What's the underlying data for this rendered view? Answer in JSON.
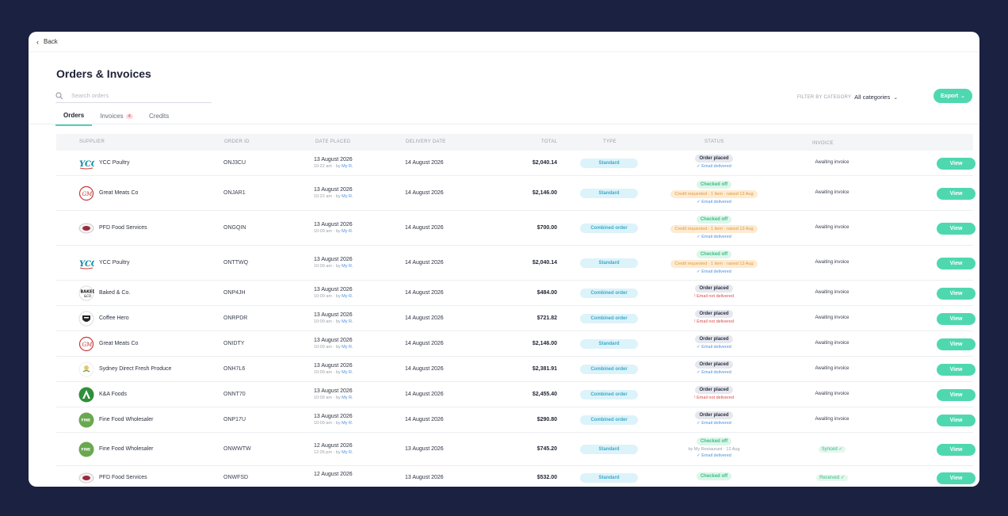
{
  "nav": {
    "back_label": "Back"
  },
  "page": {
    "title": "Orders & Invoices"
  },
  "search": {
    "placeholder": "Search orders"
  },
  "tabs": [
    {
      "label": "Orders",
      "active": true
    },
    {
      "label": "Invoices",
      "badge": "4"
    },
    {
      "label": "Credits"
    }
  ],
  "filter": {
    "label": "FILTER BY CATEGORY",
    "value": "All categories"
  },
  "export_label": "Export",
  "columns": [
    "SUPPLIER",
    "ORDER ID",
    "DATE PLACED",
    "DELIVERY DATE",
    "TOTAL",
    "TYPE",
    "STATUS",
    "INVOICE"
  ],
  "view_label": "View",
  "rows": [
    {
      "supplier": "YCC Poultry",
      "logo": "ycc-logo",
      "order_id": "ONJ3CU",
      "date": "13 August 2026",
      "date_sub": "10:22 am · by ",
      "by": "My R.",
      "delivery": "14 August 2026",
      "total": "$2,040.14",
      "type": "Standard",
      "status": {
        "pill": "Order placed",
        "pill_kind": "placed",
        "lines": [
          {
            "text": "✓ Email delivered",
            "kind": "ok"
          }
        ]
      },
      "invoice": "Awaiting invoice"
    },
    {
      "supplier": "Great Meats Co",
      "logo": "great-meats-logo",
      "order_id": "ONJAR1",
      "date": "13 August 2026",
      "date_sub": "10:22 am · by ",
      "by": "My R.",
      "delivery": "14 August 2026",
      "total": "$2,146.00",
      "type": "Standard",
      "status": {
        "pill": "Checked off",
        "pill_kind": "checked",
        "credit": "Credit requested · 1 item · raised 13 Aug",
        "lines": [
          {
            "text": "✓ Email delivered",
            "kind": "ok"
          }
        ]
      },
      "invoice": "Awaiting invoice"
    },
    {
      "supplier": "PFD Food Services",
      "logo": "pfd-logo",
      "order_id": "ONGQIN",
      "date": "13 August 2026",
      "date_sub": "10:09 am · by ",
      "by": "My R.",
      "delivery": "14 August 2026",
      "total": "$700.00",
      "type": "Combined order",
      "status": {
        "pill": "Checked off",
        "pill_kind": "checked",
        "credit": "Credit requested · 1 item · raised 13 Aug",
        "lines": [
          {
            "text": "✓ Email delivered",
            "kind": "ok"
          }
        ]
      },
      "invoice": "Awaiting invoice"
    },
    {
      "supplier": "YCC Poultry",
      "logo": "ycc-logo",
      "order_id": "ONTTWQ",
      "date": "13 August 2026",
      "date_sub": "10:09 am · by ",
      "by": "My R.",
      "delivery": "14 August 2026",
      "total": "$2,040.14",
      "type": "Standard",
      "status": {
        "pill": "Checked off",
        "pill_kind": "checked",
        "credit": "Credit requested · 1 item · raised 13 Aug",
        "lines": [
          {
            "text": "✓ Email delivered",
            "kind": "ok"
          }
        ]
      },
      "invoice": "Awaiting invoice"
    },
    {
      "supplier": "Baked & Co.",
      "logo": "baked-logo",
      "order_id": "ONP4JH",
      "date": "13 August 2026",
      "date_sub": "10:09 am · by ",
      "by": "My R.",
      "delivery": "14 August 2026",
      "total": "$484.00",
      "type": "Combined order",
      "status": {
        "pill": "Order placed",
        "pill_kind": "placed",
        "lines": [
          {
            "text": "! Email not delivered",
            "kind": "err"
          }
        ]
      },
      "invoice": "Awaiting invoice"
    },
    {
      "supplier": "Coffee Hero",
      "logo": "coffee-hero-logo",
      "order_id": "ONRPDR",
      "date": "13 August 2026",
      "date_sub": "10:09 am · by ",
      "by": "My R.",
      "delivery": "14 August 2026",
      "total": "$721.82",
      "type": "Combined order",
      "status": {
        "pill": "Order placed",
        "pill_kind": "placed",
        "lines": [
          {
            "text": "! Email not delivered",
            "kind": "err"
          }
        ]
      },
      "invoice": "Awaiting invoice"
    },
    {
      "supplier": "Great Meats Co",
      "logo": "great-meats-logo",
      "order_id": "ONIDTY",
      "date": "13 August 2026",
      "date_sub": "10:09 am · by ",
      "by": "My R.",
      "delivery": "14 August 2026",
      "total": "$2,146.00",
      "type": "Standard",
      "status": {
        "pill": "Order placed",
        "pill_kind": "placed",
        "lines": [
          {
            "text": "✓ Email delivered",
            "kind": "ok"
          }
        ]
      },
      "invoice": "Awaiting invoice"
    },
    {
      "supplier": "Sydney Direct Fresh Produce",
      "logo": "sydney-direct-logo",
      "order_id": "ONH7L6",
      "date": "13 August 2026",
      "date_sub": "10:09 am · by ",
      "by": "My R.",
      "delivery": "14 August 2026",
      "total": "$2,381.91",
      "type": "Combined order",
      "status": {
        "pill": "Order placed",
        "pill_kind": "placed",
        "lines": [
          {
            "text": "✓ Email delivered",
            "kind": "ok"
          }
        ]
      },
      "invoice": "Awaiting invoice"
    },
    {
      "supplier": "K&A Foods",
      "logo": "ka-foods-logo",
      "order_id": "ONNT70",
      "date": "13 August 2026",
      "date_sub": "10:09 am · by ",
      "by": "My R.",
      "delivery": "14 August 2026",
      "total": "$2,455.40",
      "type": "Combined order",
      "status": {
        "pill": "Order placed",
        "pill_kind": "placed",
        "lines": [
          {
            "text": "! Email not delivered",
            "kind": "err"
          }
        ]
      },
      "invoice": "Awaiting invoice"
    },
    {
      "supplier": "Fine Food Wholesaler",
      "logo": "fine-food-logo",
      "order_id": "ONP17U",
      "date": "13 August 2026",
      "date_sub": "10:09 am · by ",
      "by": "My R.",
      "delivery": "14 August 2026",
      "total": "$290.80",
      "type": "Combined order",
      "status": {
        "pill": "Order placed",
        "pill_kind": "placed",
        "lines": [
          {
            "text": "✓ Email delivered",
            "kind": "ok"
          }
        ]
      },
      "invoice": "Awaiting invoice"
    },
    {
      "supplier": "Fine Food Wholesaler",
      "logo": "fine-food-logo",
      "order_id": "ONWWTW",
      "date": "12 August 2026",
      "date_sub": "12:26 pm · by ",
      "by": "My R.",
      "delivery": "13 August 2026",
      "total": "$745.20",
      "type": "Standard",
      "status": {
        "pill": "Checked off",
        "pill_kind": "checked",
        "lines": [
          {
            "text": "by My Restaurant · 12 Aug",
            "kind": "grey"
          },
          {
            "text": "✓ Email delivered",
            "kind": "ok"
          }
        ]
      },
      "invoice": "Synced ✓",
      "invoice_synced": true
    },
    {
      "supplier": "PFD Food Services",
      "logo": "pfd-logo",
      "order_id": "ONWFSD",
      "date": "12 August 2026",
      "date_sub": "",
      "by": "",
      "delivery": "13 August 2026",
      "total": "$532.00",
      "type": "Standard",
      "status": {
        "pill": "Checked off",
        "pill_kind": "checked",
        "lines": []
      },
      "invoice": "Received ✓",
      "invoice_synced": true
    }
  ],
  "colors": {
    "accent": "#4fd8b0",
    "background": "#1a2141"
  }
}
